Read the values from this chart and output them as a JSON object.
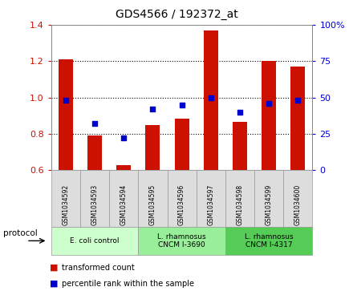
{
  "title": "GDS4566 / 192372_at",
  "samples": [
    "GSM1034592",
    "GSM1034593",
    "GSM1034594",
    "GSM1034595",
    "GSM1034596",
    "GSM1034597",
    "GSM1034598",
    "GSM1034599",
    "GSM1034600"
  ],
  "transformed_count": [
    1.21,
    0.79,
    0.63,
    0.85,
    0.885,
    1.37,
    0.865,
    1.2,
    1.17
  ],
  "percentile_rank": [
    48,
    32,
    22,
    42,
    45,
    50,
    40,
    46,
    48
  ],
  "ylim_left": [
    0.6,
    1.4
  ],
  "ylim_right": [
    0,
    100
  ],
  "yticks_left": [
    0.6,
    0.8,
    1.0,
    1.2,
    1.4
  ],
  "yticks_right": [
    0,
    25,
    50,
    75,
    100
  ],
  "bar_color": "#cc1100",
  "dot_color": "#0000cc",
  "bg_color": "#ffffff",
  "protocol_groups": [
    {
      "label": "E. coli control",
      "start": 0,
      "end": 3,
      "color": "#ccffcc"
    },
    {
      "label": "L. rhamnosus\nCNCM I-3690",
      "start": 3,
      "end": 6,
      "color": "#99ee99"
    },
    {
      "label": "L. rhamnosus\nCNCM I-4317",
      "start": 6,
      "end": 9,
      "color": "#55cc55"
    }
  ],
  "legend_items": [
    {
      "label": "transformed count",
      "color": "#cc1100"
    },
    {
      "label": "percentile rank within the sample",
      "color": "#0000cc"
    }
  ],
  "protocol_label": "protocol"
}
